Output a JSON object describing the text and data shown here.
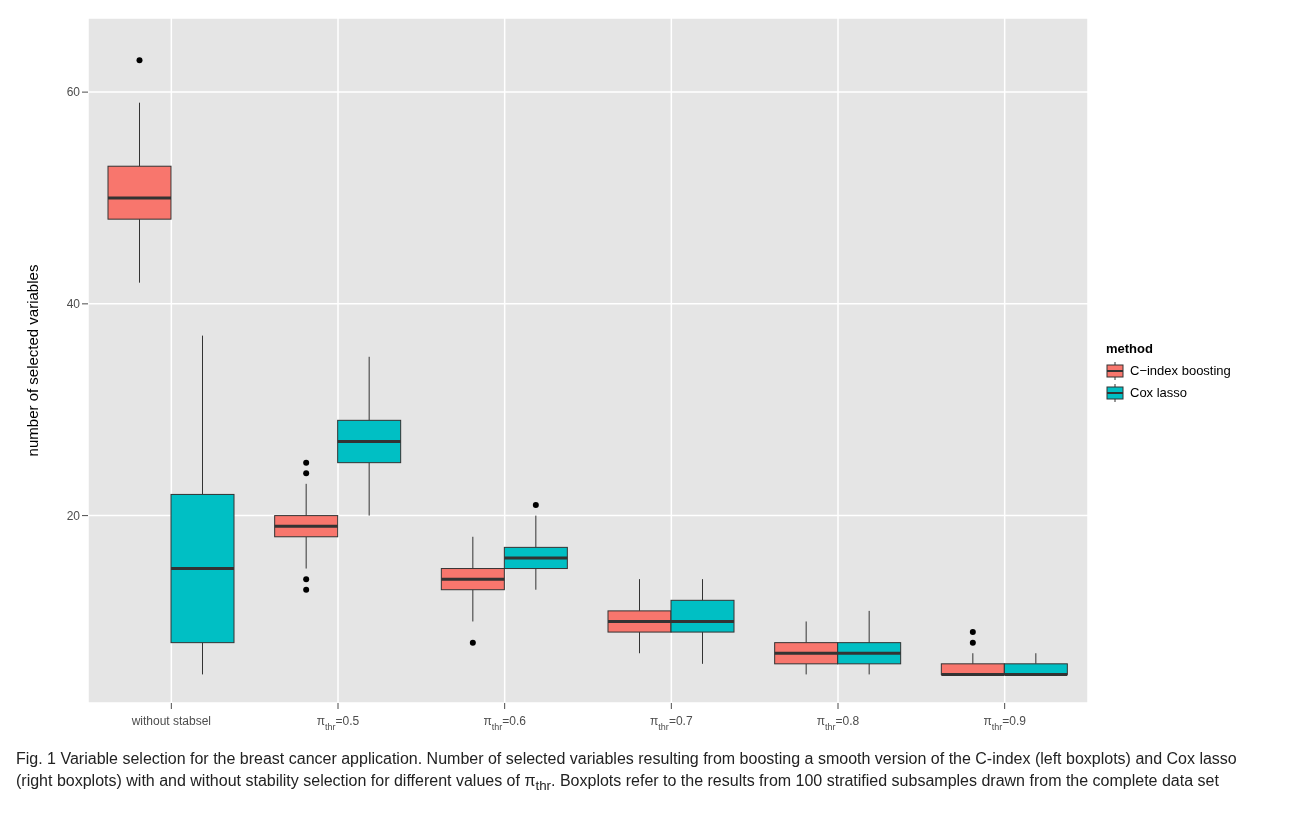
{
  "chart_data": {
    "type": "box",
    "ylabel": "number of selected variables",
    "legend_title": "method",
    "legend": "right",
    "grid": true,
    "categories": [
      "without stabsel",
      "π$_{thr}$=0.5",
      "π$_{thr}$=0.6",
      "π$_{thr}$=0.7",
      "π$_{thr}$=0.8",
      "π$_{thr}$=0.9"
    ],
    "ylim": [
      2.3,
      67
    ],
    "yticks": [
      20,
      40,
      60
    ],
    "series": [
      {
        "name": "C−index boosting",
        "color": "#f8766d",
        "boxes": [
          {
            "low": 42,
            "q1": 48,
            "median": 50,
            "q3": 53,
            "high": 59,
            "outliers": [
              63
            ]
          },
          {
            "low": 15,
            "q1": 18,
            "median": 19,
            "q3": 20,
            "high": 23,
            "outliers": [
              25,
              24,
              14,
              13
            ]
          },
          {
            "low": 10,
            "q1": 13,
            "median": 14,
            "q3": 15,
            "high": 18,
            "outliers": [
              8
            ]
          },
          {
            "low": 7,
            "q1": 9,
            "median": 10,
            "q3": 11,
            "high": 14
          },
          {
            "low": 5,
            "q1": 6,
            "median": 7,
            "q3": 8,
            "high": 10
          },
          {
            "low": 5,
            "q1": 5,
            "median": 5,
            "q3": 6,
            "high": 7,
            "outliers": [
              8,
              9
            ]
          }
        ]
      },
      {
        "name": "Cox lasso",
        "color": "#00bfc4",
        "boxes": [
          {
            "low": 5,
            "q1": 8,
            "median": 15,
            "q3": 22,
            "high": 37
          },
          {
            "low": 20,
            "q1": 25,
            "median": 27,
            "q3": 29,
            "high": 35
          },
          {
            "low": 13,
            "q1": 15,
            "median": 16,
            "q3": 17,
            "high": 20,
            "outliers": [
              21
            ]
          },
          {
            "low": 6,
            "q1": 9,
            "median": 10,
            "q3": 12,
            "high": 14
          },
          {
            "low": 5,
            "q1": 6,
            "median": 7,
            "q3": 8,
            "high": 11
          },
          {
            "low": 5,
            "q1": 5,
            "median": 5,
            "q3": 6,
            "high": 7
          }
        ]
      }
    ],
    "annotations": [
      "Fig. 1 Variable selection for the breast cancer application. Number of selected variables resulting from boosting a smooth version of the C-index (left boxplots) and Cox lasso (right boxplots) with and without stability selection for different values of π$_{thr}$. Boxplots refer to the results from 100 stratified subsamples drawn from the complete data set"
    ]
  }
}
